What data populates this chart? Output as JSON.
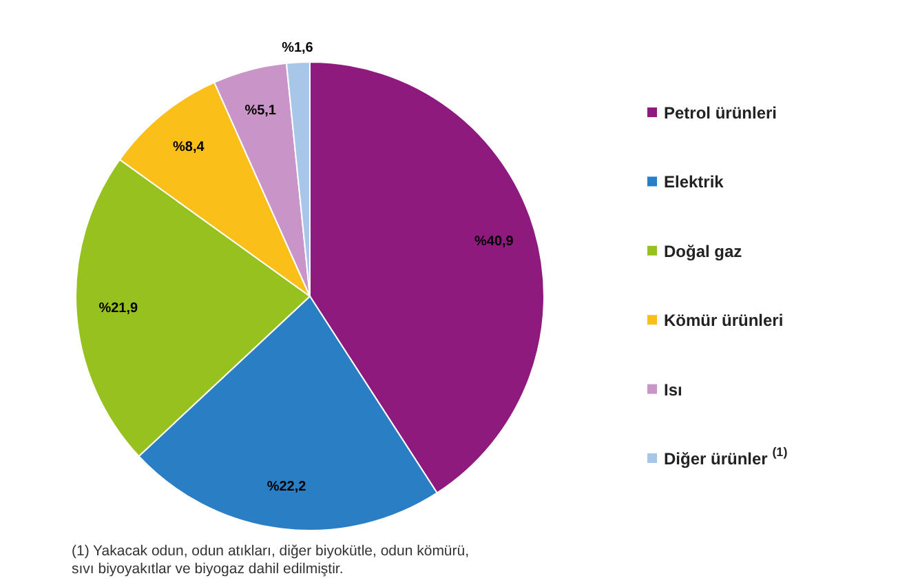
{
  "chart_data": {
    "type": "pie",
    "categories": [
      "Petrol ürünleri",
      "Elektrik",
      "Doğal gaz",
      "Kömür ürünleri",
      "Isı",
      "Diğer ürünler $^{(1)}$"
    ],
    "values": [
      40.9,
      22.2,
      21.9,
      8.4,
      5.1,
      1.6
    ],
    "colors": [
      "#8e1a7e",
      "#2a7fc4",
      "#97c11f",
      "#fbbf1a",
      "#c994c7",
      "#a7c6e8"
    ],
    "value_labels": [
      "%40,9",
      "%22,2",
      "%21,9",
      "%8,4",
      "%5,1",
      "%1,6"
    ],
    "legend": "right",
    "annotations": [
      "(1) Yakacak odun, odun atıkları, diğer biyokütle, odun kömürü, sıvı biyoyakıtlar ve biyogaz dahil edilmiştir."
    ]
  }
}
